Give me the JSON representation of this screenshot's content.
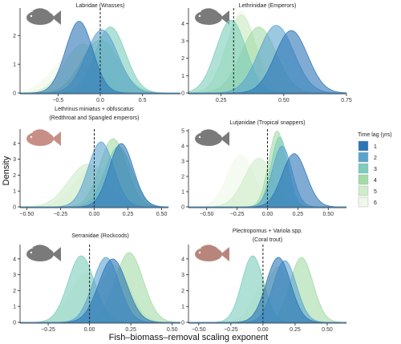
{
  "figure": {
    "x_label": "Fish–biomass–removal scaling exponent",
    "y_label": "Density"
  },
  "legend": {
    "title": "Time lag (yrs)",
    "entries": [
      {
        "label": "1",
        "color": "#2b74b8"
      },
      {
        "label": "2",
        "color": "#5aa3cf"
      },
      {
        "label": "3",
        "color": "#7ccdbb"
      },
      {
        "label": "4",
        "color": "#a3dba6"
      },
      {
        "label": "5",
        "color": "#cfecca"
      },
      {
        "label": "6",
        "color": "#eff8e8"
      }
    ]
  },
  "chart_data": [
    {
      "type": "area",
      "title": "Labridae (Wrasses)",
      "title_line2": "",
      "xlim": [
        -0.95,
        0.95
      ],
      "ylim": [
        0,
        2.9
      ],
      "xticks": [
        -0.5,
        0.0,
        0.5
      ],
      "xtick_labels": [
        "−0.5",
        "0.0",
        "0.5"
      ],
      "yticks": [
        0,
        1,
        2
      ],
      "vline": 0,
      "series": [
        {
          "lag": "1",
          "mean": -0.25,
          "sd": 0.16,
          "peak": 2.5
        },
        {
          "lag": "2",
          "mean": 0.02,
          "sd": 0.19,
          "peak": 2.2
        },
        {
          "lag": "3",
          "mean": 0.12,
          "sd": 0.18,
          "peak": 2.3
        },
        {
          "lag": "4",
          "mean": 0.0,
          "sd": 0.22,
          "peak": 1.85
        },
        {
          "lag": "5",
          "mean": -0.2,
          "sd": 0.22,
          "peak": 1.7
        },
        {
          "lag": "6",
          "mean": -0.3,
          "sd": 0.25,
          "peak": 1.4
        }
      ]
    },
    {
      "type": "area",
      "title": "Lethrinidae (Emperors)",
      "title_line2": "",
      "xlim": [
        0.12,
        0.75
      ],
      "ylim": [
        0,
        4.8
      ],
      "xticks": [
        0.25,
        0.5,
        0.75
      ],
      "xtick_labels": [
        "0.25",
        "0.50",
        "0.75"
      ],
      "yticks": [
        0,
        1,
        2,
        3,
        4
      ],
      "vline": 0.3,
      "series": [
        {
          "lag": "1",
          "mean": 0.53,
          "sd": 0.065,
          "peak": 3.6
        },
        {
          "lag": "2",
          "mean": 0.47,
          "sd": 0.07,
          "peak": 3.9
        },
        {
          "lag": "3",
          "mean": 0.29,
          "sd": 0.06,
          "peak": 4.2
        },
        {
          "lag": "4",
          "mean": 0.4,
          "sd": 0.07,
          "peak": 3.8
        },
        {
          "lag": "5",
          "mean": 0.33,
          "sd": 0.06,
          "peak": 4.5
        },
        {
          "lag": "6",
          "mean": 0.33,
          "sd": 0.055,
          "peak": 4.7
        }
      ]
    },
    {
      "type": "area",
      "title": "Lethrinus miniatus + obfuscatus",
      "title_line2": "(Redthroat and Spangled emperors)",
      "xlim": [
        -0.55,
        0.55
      ],
      "ylim": [
        0,
        4.8
      ],
      "xticks": [
        -0.5,
        -0.25,
        0.0,
        0.25,
        0.5
      ],
      "xtick_labels": [
        "−0.50",
        "−0.25",
        "0.00",
        "0.25",
        "0.50"
      ],
      "yticks": [
        0,
        1,
        2,
        3,
        4
      ],
      "vline": 0,
      "series": [
        {
          "lag": "1",
          "mean": 0.2,
          "sd": 0.09,
          "peak": 4.0
        },
        {
          "lag": "2",
          "mean": 0.05,
          "sd": 0.095,
          "peak": 4.1
        },
        {
          "lag": "3",
          "mean": 0.18,
          "sd": 0.1,
          "peak": 3.8
        },
        {
          "lag": "4",
          "mean": 0.14,
          "sd": 0.1,
          "peak": 4.3
        },
        {
          "lag": "5",
          "mean": -0.05,
          "sd": 0.14,
          "peak": 2.7
        },
        {
          "lag": "6",
          "mean": 0.0,
          "sd": 0.14,
          "peak": 2.6
        }
      ]
    },
    {
      "type": "area",
      "title": "Lutjanidae (Tropical snappers)",
      "title_line2": "",
      "xlim": [
        -0.65,
        0.65
      ],
      "ylim": [
        0,
        5.0
      ],
      "xticks": [
        -0.5,
        -0.25,
        0.0,
        0.25,
        0.5
      ],
      "xtick_labels": [
        "−0.50",
        "−0.25",
        "0.00",
        "0.25",
        "0.50"
      ],
      "yticks": [
        0,
        1,
        2,
        3,
        4,
        5
      ],
      "vline": 0,
      "series": [
        {
          "lag": "1",
          "mean": 0.22,
          "sd": 0.1,
          "peak": 3.5
        },
        {
          "lag": "2",
          "mean": 0.12,
          "sd": 0.08,
          "peak": 4.0
        },
        {
          "lag": "3",
          "mean": 0.1,
          "sd": 0.07,
          "peak": 4.6
        },
        {
          "lag": "4",
          "mean": 0.08,
          "sd": 0.07,
          "peak": 5.0
        },
        {
          "lag": "5",
          "mean": -0.07,
          "sd": 0.12,
          "peak": 3.2
        },
        {
          "lag": "6",
          "mean": -0.22,
          "sd": 0.11,
          "peak": 3.4
        }
      ]
    },
    {
      "type": "area",
      "title": "Serranidae (Rockcods)",
      "title_line2": "",
      "xlim": [
        -0.42,
        0.55
      ],
      "ylim": [
        0,
        4.8
      ],
      "xticks": [
        -0.25,
        0.0,
        0.25,
        0.5
      ],
      "xtick_labels": [
        "−0.25",
        "0.00",
        "0.25",
        "0.50"
      ],
      "yticks": [
        0,
        1,
        2,
        3,
        4
      ],
      "vline": 0,
      "series": [
        {
          "lag": "1",
          "mean": 0.14,
          "sd": 0.085,
          "peak": 4.0
        },
        {
          "lag": "2",
          "mean": 0.1,
          "sd": 0.08,
          "peak": 4.1
        },
        {
          "lag": "3",
          "mean": -0.05,
          "sd": 0.08,
          "peak": 4.2
        },
        {
          "lag": "4",
          "mean": 0.24,
          "sd": 0.085,
          "peak": 4.4
        },
        {
          "lag": "5",
          "mean": 0.15,
          "sd": 0.09,
          "peak": 3.6
        },
        {
          "lag": "6",
          "mean": -0.02,
          "sd": 0.1,
          "peak": 3.0
        }
      ]
    },
    {
      "type": "area",
      "title": "Plectropomus + Variola spp.",
      "title_line2": "(Coral trout)",
      "xlim": [
        -0.58,
        0.65
      ],
      "ylim": [
        0,
        4.8
      ],
      "xticks": [
        -0.5,
        -0.25,
        0.0,
        0.25,
        0.5
      ],
      "xtick_labels": [
        "−0.50",
        "−0.25",
        "0.00",
        "0.25",
        "0.50"
      ],
      "yticks": [
        0,
        1,
        2,
        3,
        4
      ],
      "vline": 0,
      "series": [
        {
          "lag": "1",
          "mean": 0.12,
          "sd": 0.095,
          "peak": 4.1
        },
        {
          "lag": "2",
          "mean": 0.17,
          "sd": 0.09,
          "peak": 3.9
        },
        {
          "lag": "3",
          "mean": -0.08,
          "sd": 0.085,
          "peak": 4.2
        },
        {
          "lag": "4",
          "mean": 0.3,
          "sd": 0.09,
          "peak": 4.1
        },
        {
          "lag": "5",
          "mean": 0.12,
          "sd": 0.1,
          "peak": 3.5
        },
        {
          "lag": "6",
          "mean": 0.06,
          "sd": 0.11,
          "peak": 3.1
        }
      ]
    }
  ]
}
